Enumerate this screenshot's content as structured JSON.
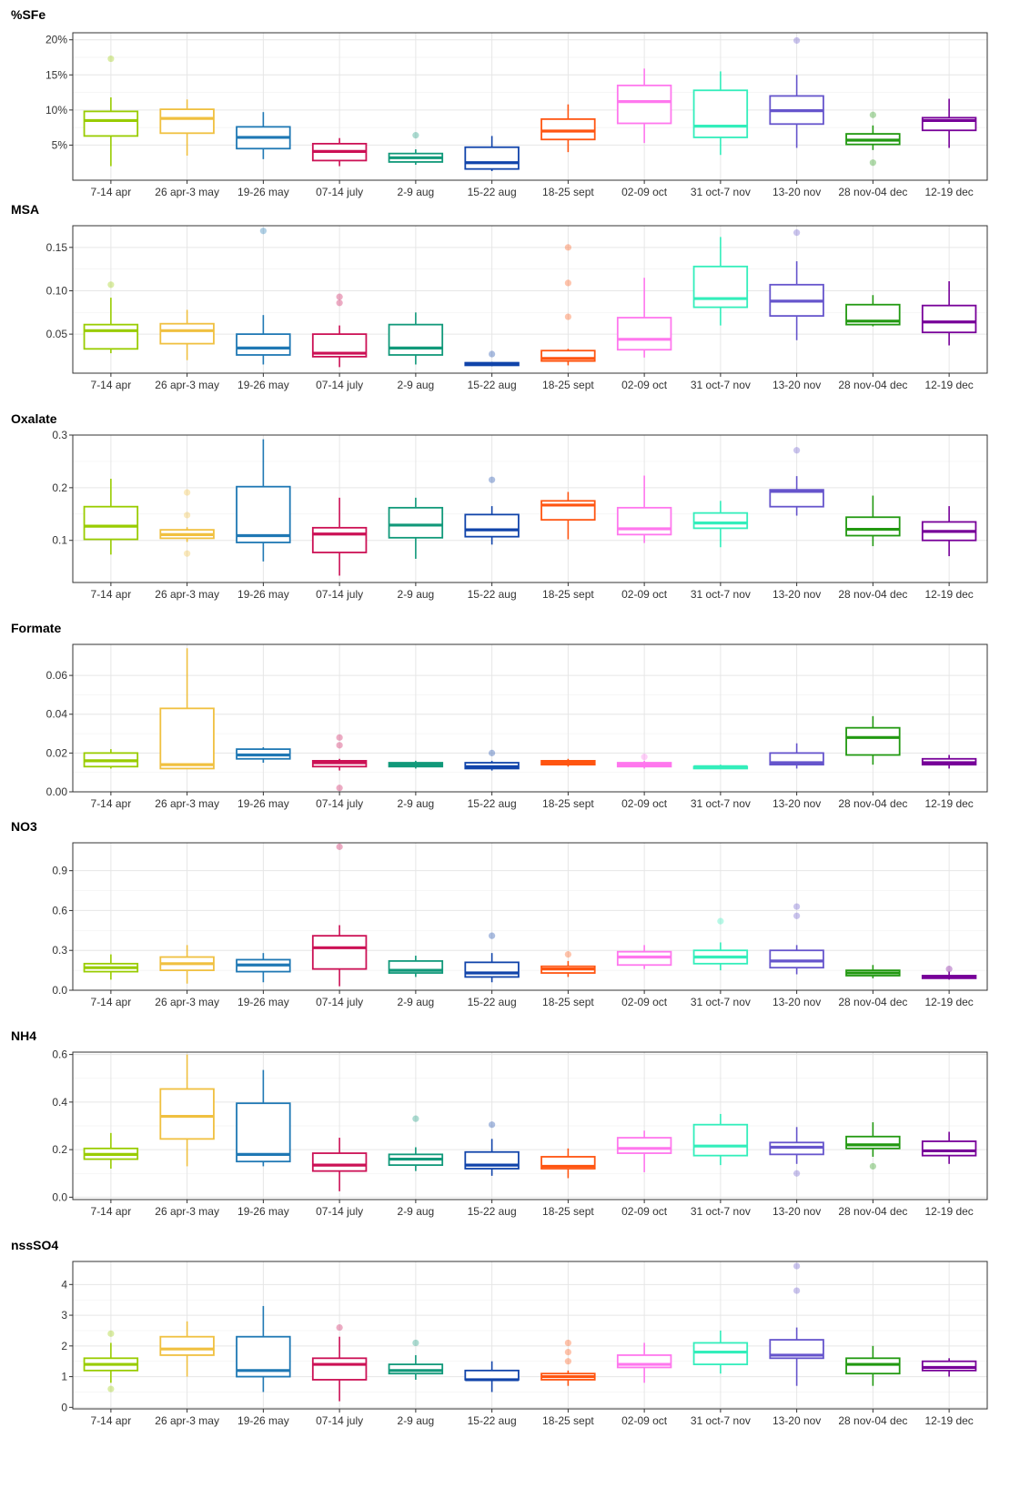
{
  "categories": [
    "7-14 apr",
    "26 apr-3 may",
    "19-26 may",
    "07-14 july",
    "2-9 aug",
    "15-22 aug",
    "18-25 sept",
    "02-09 oct",
    "31 oct-7 nov",
    "13-20 nov",
    "28 nov-04 dec",
    "12-19 dec"
  ],
  "colors": [
    "#99cc00",
    "#f0c040",
    "#1f78b4",
    "#cc1155",
    "#11997a",
    "#1144aa",
    "#ff5511",
    "#ff77ee",
    "#33eebb",
    "#6655cc",
    "#229911",
    "#770099"
  ],
  "chart_data": [
    {
      "type": "boxplot",
      "title": "%SFe",
      "ylim": [
        0,
        21
      ],
      "yticks": [
        5,
        10,
        15,
        20
      ],
      "ytick_labels": [
        "5%",
        "10%",
        "15%",
        "20%"
      ],
      "boxes": [
        {
          "min": 2.0,
          "q1": 6.3,
          "median": 8.5,
          "q3": 9.8,
          "max": 11.8,
          "outliers": [
            17.3
          ]
        },
        {
          "min": 3.5,
          "q1": 6.7,
          "median": 8.8,
          "q3": 10.1,
          "max": 11.5,
          "outliers": []
        },
        {
          "min": 3.0,
          "q1": 4.5,
          "median": 6.1,
          "q3": 7.6,
          "max": 9.7,
          "outliers": []
        },
        {
          "min": 2.0,
          "q1": 2.8,
          "median": 4.1,
          "q3": 5.2,
          "max": 6.0,
          "outliers": []
        },
        {
          "min": 2.2,
          "q1": 2.6,
          "median": 3.2,
          "q3": 3.8,
          "max": 4.4,
          "outliers": [
            6.4
          ]
        },
        {
          "min": 1.3,
          "q1": 1.6,
          "median": 2.5,
          "q3": 4.7,
          "max": 6.3,
          "outliers": []
        },
        {
          "min": 4.0,
          "q1": 5.8,
          "median": 7.0,
          "q3": 8.7,
          "max": 10.8,
          "outliers": []
        },
        {
          "min": 5.3,
          "q1": 8.1,
          "median": 11.2,
          "q3": 13.5,
          "max": 15.9,
          "outliers": []
        },
        {
          "min": 3.6,
          "q1": 6.1,
          "median": 7.7,
          "q3": 12.8,
          "max": 15.5,
          "outliers": []
        },
        {
          "min": 4.6,
          "q1": 8.0,
          "median": 9.9,
          "q3": 12.0,
          "max": 15.0,
          "outliers": [
            19.9
          ]
        },
        {
          "min": 4.3,
          "q1": 5.1,
          "median": 5.7,
          "q3": 6.6,
          "max": 7.8,
          "outliers": [
            9.3,
            2.5
          ]
        },
        {
          "min": 4.6,
          "q1": 7.1,
          "median": 8.5,
          "q3": 8.9,
          "max": 11.6,
          "outliers": []
        }
      ]
    },
    {
      "type": "boxplot",
      "title": "MSA",
      "ylim": [
        0.005,
        0.175
      ],
      "yticks": [
        0.05,
        0.1,
        0.15
      ],
      "ytick_labels": [
        "0.05",
        "0.10",
        "0.15"
      ],
      "boxes": [
        {
          "min": 0.028,
          "q1": 0.033,
          "median": 0.054,
          "q3": 0.061,
          "max": 0.092,
          "outliers": [
            0.107
          ]
        },
        {
          "min": 0.02,
          "q1": 0.039,
          "median": 0.054,
          "q3": 0.062,
          "max": 0.078,
          "outliers": []
        },
        {
          "min": 0.015,
          "q1": 0.026,
          "median": 0.034,
          "q3": 0.05,
          "max": 0.072,
          "outliers": [
            0.169
          ]
        },
        {
          "min": 0.012,
          "q1": 0.024,
          "median": 0.028,
          "q3": 0.05,
          "max": 0.06,
          "outliers": [
            0.093,
            0.086
          ]
        },
        {
          "min": 0.015,
          "q1": 0.026,
          "median": 0.034,
          "q3": 0.061,
          "max": 0.075,
          "outliers": []
        },
        {
          "min": 0.013,
          "q1": 0.014,
          "median": 0.016,
          "q3": 0.017,
          "max": 0.018,
          "outliers": [
            0.027
          ]
        },
        {
          "min": 0.014,
          "q1": 0.019,
          "median": 0.022,
          "q3": 0.031,
          "max": 0.033,
          "outliers": [
            0.15,
            0.109,
            0.07
          ]
        },
        {
          "min": 0.023,
          "q1": 0.032,
          "median": 0.044,
          "q3": 0.069,
          "max": 0.115,
          "outliers": []
        },
        {
          "min": 0.06,
          "q1": 0.081,
          "median": 0.091,
          "q3": 0.128,
          "max": 0.162,
          "outliers": []
        },
        {
          "min": 0.043,
          "q1": 0.071,
          "median": 0.088,
          "q3": 0.107,
          "max": 0.134,
          "outliers": [
            0.167
          ]
        },
        {
          "min": 0.059,
          "q1": 0.061,
          "median": 0.065,
          "q3": 0.084,
          "max": 0.095,
          "outliers": []
        },
        {
          "min": 0.037,
          "q1": 0.052,
          "median": 0.064,
          "q3": 0.083,
          "max": 0.111,
          "outliers": []
        }
      ]
    },
    {
      "type": "boxplot",
      "title": "Oxalate",
      "ylim": [
        0.02,
        0.3
      ],
      "yticks": [
        0.1,
        0.2,
        0.3
      ],
      "ytick_labels": [
        "0.1",
        "0.2",
        "0.3"
      ],
      "boxes": [
        {
          "min": 0.073,
          "q1": 0.102,
          "median": 0.127,
          "q3": 0.164,
          "max": 0.217,
          "outliers": []
        },
        {
          "min": 0.097,
          "q1": 0.104,
          "median": 0.111,
          "q3": 0.12,
          "max": 0.125,
          "outliers": [
            0.191,
            0.148,
            0.075
          ]
        },
        {
          "min": 0.06,
          "q1": 0.096,
          "median": 0.109,
          "q3": 0.202,
          "max": 0.292,
          "outliers": []
        },
        {
          "min": 0.033,
          "q1": 0.077,
          "median": 0.112,
          "q3": 0.124,
          "max": 0.181,
          "outliers": []
        },
        {
          "min": 0.065,
          "q1": 0.105,
          "median": 0.129,
          "q3": 0.162,
          "max": 0.181,
          "outliers": []
        },
        {
          "min": 0.092,
          "q1": 0.107,
          "median": 0.12,
          "q3": 0.149,
          "max": 0.165,
          "outliers": [
            0.215
          ]
        },
        {
          "min": 0.102,
          "q1": 0.139,
          "median": 0.167,
          "q3": 0.175,
          "max": 0.192,
          "outliers": []
        },
        {
          "min": 0.095,
          "q1": 0.111,
          "median": 0.122,
          "q3": 0.162,
          "max": 0.223,
          "outliers": []
        },
        {
          "min": 0.087,
          "q1": 0.123,
          "median": 0.133,
          "q3": 0.152,
          "max": 0.175,
          "outliers": []
        },
        {
          "min": 0.147,
          "q1": 0.164,
          "median": 0.193,
          "q3": 0.196,
          "max": 0.222,
          "outliers": [
            0.271
          ]
        },
        {
          "min": 0.089,
          "q1": 0.109,
          "median": 0.121,
          "q3": 0.144,
          "max": 0.185,
          "outliers": []
        },
        {
          "min": 0.07,
          "q1": 0.1,
          "median": 0.117,
          "q3": 0.135,
          "max": 0.165,
          "outliers": []
        }
      ]
    },
    {
      "type": "boxplot",
      "title": "Formate",
      "ylim": [
        0.0,
        0.076
      ],
      "yticks": [
        0.0,
        0.02,
        0.04,
        0.06
      ],
      "ytick_labels": [
        "0.00",
        "0.02",
        "0.04",
        "0.06"
      ],
      "boxes": [
        {
          "min": 0.012,
          "q1": 0.013,
          "median": 0.016,
          "q3": 0.02,
          "max": 0.022,
          "outliers": []
        },
        {
          "min": 0.012,
          "q1": 0.012,
          "median": 0.014,
          "q3": 0.043,
          "max": 0.074,
          "outliers": []
        },
        {
          "min": 0.015,
          "q1": 0.017,
          "median": 0.019,
          "q3": 0.022,
          "max": 0.023,
          "outliers": []
        },
        {
          "min": 0.011,
          "q1": 0.013,
          "median": 0.015,
          "q3": 0.016,
          "max": 0.017,
          "outliers": [
            0.028,
            0.024,
            0.002
          ]
        },
        {
          "min": 0.012,
          "q1": 0.013,
          "median": 0.014,
          "q3": 0.015,
          "max": 0.016,
          "outliers": []
        },
        {
          "min": 0.011,
          "q1": 0.012,
          "median": 0.013,
          "q3": 0.015,
          "max": 0.016,
          "outliers": [
            0.02
          ]
        },
        {
          "min": 0.013,
          "q1": 0.014,
          "median": 0.015,
          "q3": 0.016,
          "max": 0.017,
          "outliers": []
        },
        {
          "min": 0.012,
          "q1": 0.013,
          "median": 0.014,
          "q3": 0.015,
          "max": 0.016,
          "outliers": [
            0.018
          ]
        },
        {
          "min": 0.012,
          "q1": 0.012,
          "median": 0.013,
          "q3": 0.013,
          "max": 0.014,
          "outliers": []
        },
        {
          "min": 0.012,
          "q1": 0.014,
          "median": 0.015,
          "q3": 0.02,
          "max": 0.025,
          "outliers": []
        },
        {
          "min": 0.014,
          "q1": 0.019,
          "median": 0.028,
          "q3": 0.033,
          "max": 0.039,
          "outliers": []
        },
        {
          "min": 0.012,
          "q1": 0.014,
          "median": 0.015,
          "q3": 0.017,
          "max": 0.019,
          "outliers": []
        }
      ]
    },
    {
      "type": "boxplot",
      "title": "NO3",
      "ylim": [
        0.0,
        1.11
      ],
      "yticks": [
        0.0,
        0.3,
        0.6,
        0.9
      ],
      "ytick_labels": [
        "0.0",
        "0.3",
        "0.6",
        "0.9"
      ],
      "boxes": [
        {
          "min": 0.08,
          "q1": 0.14,
          "median": 0.17,
          "q3": 0.2,
          "max": 0.27,
          "outliers": []
        },
        {
          "min": 0.05,
          "q1": 0.15,
          "median": 0.2,
          "q3": 0.25,
          "max": 0.34,
          "outliers": []
        },
        {
          "min": 0.06,
          "q1": 0.14,
          "median": 0.19,
          "q3": 0.23,
          "max": 0.28,
          "outliers": []
        },
        {
          "min": 0.03,
          "q1": 0.16,
          "median": 0.32,
          "q3": 0.41,
          "max": 0.49,
          "outliers": [
            1.08
          ]
        },
        {
          "min": 0.1,
          "q1": 0.13,
          "median": 0.15,
          "q3": 0.22,
          "max": 0.26,
          "outliers": []
        },
        {
          "min": 0.06,
          "q1": 0.1,
          "median": 0.13,
          "q3": 0.21,
          "max": 0.28,
          "outliers": [
            0.41
          ]
        },
        {
          "min": 0.1,
          "q1": 0.13,
          "median": 0.16,
          "q3": 0.18,
          "max": 0.22,
          "outliers": [
            0.27
          ]
        },
        {
          "min": 0.16,
          "q1": 0.19,
          "median": 0.25,
          "q3": 0.29,
          "max": 0.34,
          "outliers": []
        },
        {
          "min": 0.15,
          "q1": 0.2,
          "median": 0.25,
          "q3": 0.3,
          "max": 0.36,
          "outliers": [
            0.52
          ]
        },
        {
          "min": 0.12,
          "q1": 0.17,
          "median": 0.22,
          "q3": 0.3,
          "max": 0.34,
          "outliers": [
            0.63,
            0.56
          ]
        },
        {
          "min": 0.09,
          "q1": 0.11,
          "median": 0.13,
          "q3": 0.15,
          "max": 0.19,
          "outliers": []
        },
        {
          "min": 0.08,
          "q1": 0.09,
          "median": 0.1,
          "q3": 0.11,
          "max": 0.14,
          "outliers": [
            0.16
          ]
        }
      ]
    },
    {
      "type": "boxplot",
      "title": "NH4",
      "ylim": [
        -0.01,
        0.61
      ],
      "yticks": [
        0.0,
        0.2,
        0.4,
        0.6
      ],
      "ytick_labels": [
        "0.0",
        "0.2",
        "0.4",
        "0.6"
      ],
      "boxes": [
        {
          "min": 0.12,
          "q1": 0.16,
          "median": 0.18,
          "q3": 0.205,
          "max": 0.27,
          "outliers": []
        },
        {
          "min": 0.13,
          "q1": 0.245,
          "median": 0.34,
          "q3": 0.455,
          "max": 0.6,
          "outliers": []
        },
        {
          "min": 0.13,
          "q1": 0.15,
          "median": 0.18,
          "q3": 0.395,
          "max": 0.535,
          "outliers": []
        },
        {
          "min": 0.025,
          "q1": 0.11,
          "median": 0.135,
          "q3": 0.185,
          "max": 0.25,
          "outliers": []
        },
        {
          "min": 0.11,
          "q1": 0.135,
          "median": 0.16,
          "q3": 0.18,
          "max": 0.21,
          "outliers": [
            0.33
          ]
        },
        {
          "min": 0.09,
          "q1": 0.12,
          "median": 0.135,
          "q3": 0.19,
          "max": 0.245,
          "outliers": [
            0.305
          ]
        },
        {
          "min": 0.08,
          "q1": 0.12,
          "median": 0.13,
          "q3": 0.17,
          "max": 0.205,
          "outliers": []
        },
        {
          "min": 0.105,
          "q1": 0.185,
          "median": 0.205,
          "q3": 0.25,
          "max": 0.28,
          "outliers": []
        },
        {
          "min": 0.135,
          "q1": 0.175,
          "median": 0.215,
          "q3": 0.305,
          "max": 0.35,
          "outliers": []
        },
        {
          "min": 0.14,
          "q1": 0.18,
          "median": 0.21,
          "q3": 0.23,
          "max": 0.295,
          "outliers": [
            0.1
          ]
        },
        {
          "min": 0.17,
          "q1": 0.205,
          "median": 0.22,
          "q3": 0.255,
          "max": 0.315,
          "outliers": [
            0.13
          ]
        },
        {
          "min": 0.14,
          "q1": 0.175,
          "median": 0.195,
          "q3": 0.235,
          "max": 0.275,
          "outliers": []
        }
      ]
    },
    {
      "type": "boxplot",
      "title": "nssSO4",
      "ylim": [
        -0.05,
        4.75
      ],
      "yticks": [
        0,
        1,
        2,
        3,
        4
      ],
      "ytick_labels": [
        "0",
        "1",
        "2",
        "3",
        "4"
      ],
      "boxes": [
        {
          "min": 0.8,
          "q1": 1.2,
          "median": 1.4,
          "q3": 1.6,
          "max": 2.1,
          "outliers": [
            2.4,
            0.6
          ]
        },
        {
          "min": 1.0,
          "q1": 1.7,
          "median": 1.9,
          "q3": 2.3,
          "max": 2.8,
          "outliers": []
        },
        {
          "min": 0.5,
          "q1": 1.0,
          "median": 1.2,
          "q3": 2.3,
          "max": 3.3,
          "outliers": []
        },
        {
          "min": 0.2,
          "q1": 0.9,
          "median": 1.4,
          "q3": 1.6,
          "max": 2.3,
          "outliers": [
            2.6
          ]
        },
        {
          "min": 0.9,
          "q1": 1.1,
          "median": 1.2,
          "q3": 1.4,
          "max": 1.7,
          "outliers": [
            2.1
          ]
        },
        {
          "min": 0.5,
          "q1": 0.9,
          "median": 0.9,
          "q3": 1.2,
          "max": 1.5,
          "outliers": []
        },
        {
          "min": 0.7,
          "q1": 0.9,
          "median": 1.0,
          "q3": 1.1,
          "max": 1.2,
          "outliers": [
            2.1,
            1.8,
            1.5
          ]
        },
        {
          "min": 0.8,
          "q1": 1.3,
          "median": 1.4,
          "q3": 1.7,
          "max": 2.1,
          "outliers": []
        },
        {
          "min": 1.1,
          "q1": 1.4,
          "median": 1.8,
          "q3": 2.1,
          "max": 2.5,
          "outliers": []
        },
        {
          "min": 0.7,
          "q1": 1.6,
          "median": 1.7,
          "q3": 2.2,
          "max": 2.6,
          "outliers": [
            4.6,
            3.8
          ]
        },
        {
          "min": 0.7,
          "q1": 1.1,
          "median": 1.4,
          "q3": 1.6,
          "max": 2.0,
          "outliers": []
        },
        {
          "min": 1.0,
          "q1": 1.2,
          "median": 1.3,
          "q3": 1.5,
          "max": 1.6,
          "outliers": []
        }
      ]
    }
  ]
}
